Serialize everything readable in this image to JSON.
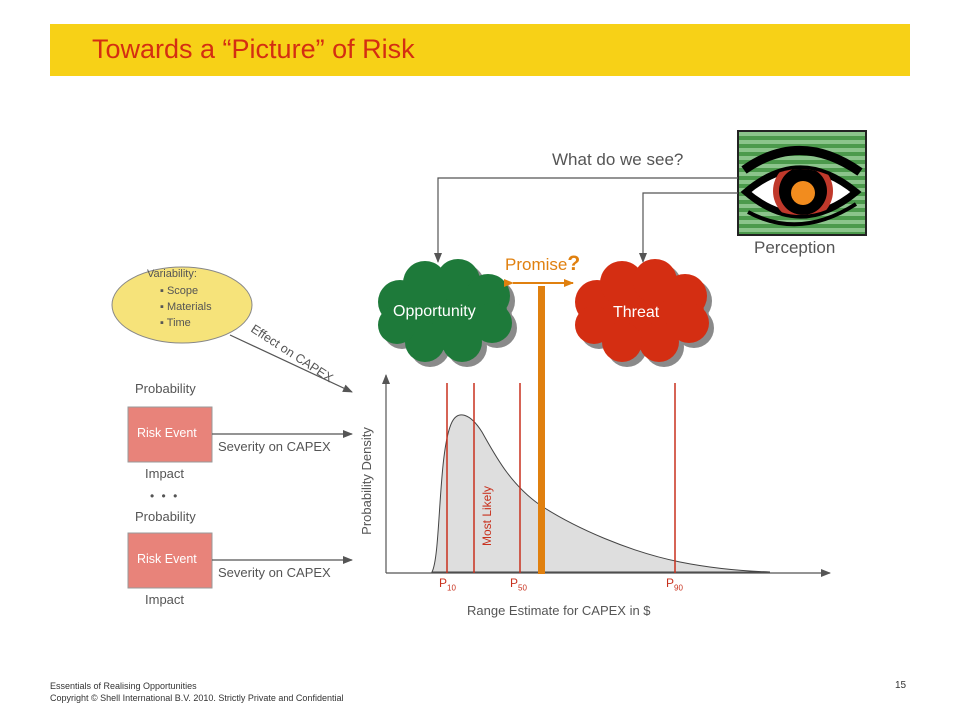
{
  "slide": {
    "title": "Towards a “Picture” of Risk",
    "page_number": "15",
    "footer_line1": "Essentials of Realising Opportunities",
    "footer_line2": "Copyright © Shell International B.V. 2010. Strictly Private and Confidential"
  },
  "diagram": {
    "question": "What do we see?",
    "perception_label": "Perception",
    "promise_label": "Promise",
    "promise_mark": "?",
    "opportunity_label": "Opportunity",
    "threat_label": "Threat",
    "variability": {
      "heading": "Variability:",
      "items": [
        "Scope",
        "Materials",
        "Time"
      ]
    },
    "effect_label": "Effect on CAPEX",
    "risk_events": [
      {
        "probability": "Probability",
        "box": "Risk Event",
        "severity": "Severity on CAPEX",
        "impact": "Impact"
      },
      {
        "probability": "Probability",
        "box": "Risk Event",
        "severity": "Severity on CAPEX",
        "impact": "Impact"
      }
    ],
    "ellipsis": "• • •",
    "y_axis_label": "Probability Density",
    "x_axis_label": "Range Estimate for CAPEX in $",
    "most_likely_label": "Most Likely",
    "p10": {
      "base": "P",
      "sub": "10"
    },
    "p50": {
      "base": "P",
      "sub": "50"
    },
    "p90": {
      "base": "P",
      "sub": "90"
    }
  },
  "colors": {
    "title_bar": "#f7d117",
    "title_text": "#d42e12",
    "opportunity": "#1e7a3a",
    "threat": "#d42e12",
    "promise": "#e0800f",
    "risk_event": "#e8837a",
    "variability": "#f6e37a",
    "percentile_lines": "#c8311e"
  },
  "icons": [
    "eye-icon"
  ]
}
